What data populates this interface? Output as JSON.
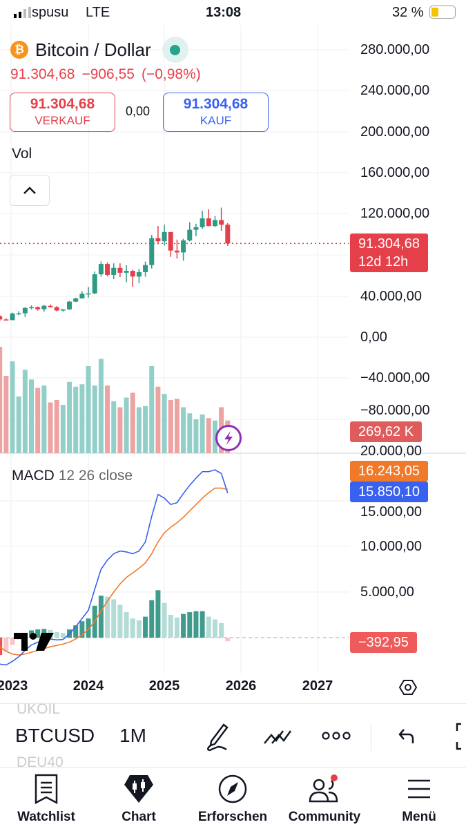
{
  "status": {
    "carrier": "spusu",
    "network": "LTE",
    "time": "13:08",
    "battery": "32 %",
    "battery_level": 0.32
  },
  "header": {
    "symbol_name": "Bitcoin / Dollar",
    "market_status": "open",
    "price": "91.304,68",
    "change": "−906,55",
    "change_pct": "(−0,98%)",
    "sell_price": "91.304,68",
    "sell_label": "VERKAUF",
    "spread": "0,00",
    "buy_price": "91.304,68",
    "buy_label": "KAUF"
  },
  "colors": {
    "up": "#26a69a",
    "down": "#e5404a",
    "macd": "#3861f0",
    "signal": "#f07a2a",
    "bitcoin": "#f7931a"
  },
  "vol_label": "Vol",
  "macd_label": {
    "name": "MACD",
    "params": "12 26 close"
  },
  "price_axis": [
    "280.000,00",
    "240.000,00",
    "200.000,00",
    "160.000,00",
    "120.000,00",
    "40.000,00",
    "0,00",
    "−40.000,00",
    "−80.000,00"
  ],
  "macd_axis": [
    "20.000,00",
    "15.000,00",
    "10.000,00",
    "5.000,00"
  ],
  "tags": {
    "price": "91.304,68",
    "countdown": "12d 12h",
    "volume": "269,62 K",
    "signal": "16.243,05",
    "macd": "15.850,10",
    "histogram": "−392,95"
  },
  "x_axis": [
    "2023",
    "2024",
    "2025",
    "2026",
    "2027"
  ],
  "toolbar": {
    "symbol": "BTCUSD",
    "interval": "1M",
    "prev_symbol": "UKOIL",
    "next_symbol": "DEU40"
  },
  "nav": [
    {
      "label": "Watchlist",
      "icon": "bookmark-list-icon"
    },
    {
      "label": "Chart",
      "icon": "candles-chart-icon"
    },
    {
      "label": "Erforschen",
      "icon": "compass-icon"
    },
    {
      "label": "Community",
      "icon": "people-icon"
    },
    {
      "label": "Menü",
      "icon": "hamburger-menu-icon"
    }
  ],
  "chart_data": {
    "type": "candlestick",
    "interval": "1M",
    "months": [
      "2022-11",
      "2022-12",
      "2023-01",
      "2023-02",
      "2023-03",
      "2023-04",
      "2023-05",
      "2023-06",
      "2023-07",
      "2023-08",
      "2023-09",
      "2023-10",
      "2023-11",
      "2023-12",
      "2024-01",
      "2024-02",
      "2024-03",
      "2024-04",
      "2024-05",
      "2024-06",
      "2024-07",
      "2024-08",
      "2024-09",
      "2024-10",
      "2024-11",
      "2024-12",
      "2025-01",
      "2025-02",
      "2025-03",
      "2025-04",
      "2025-05",
      "2025-06",
      "2025-07",
      "2025-08",
      "2025-09",
      "2025-10",
      "2025-11"
    ],
    "ohlc": [
      [
        20500,
        21500,
        15500,
        17200
      ],
      [
        17200,
        18400,
        16300,
        16500
      ],
      [
        16500,
        23900,
        16500,
        23100
      ],
      [
        23100,
        25200,
        21400,
        23200
      ],
      [
        23200,
        29200,
        19600,
        28500
      ],
      [
        28500,
        31000,
        27000,
        29200
      ],
      [
        29200,
        29800,
        25800,
        27200
      ],
      [
        27200,
        31400,
        24800,
        30500
      ],
      [
        30500,
        31800,
        28900,
        29200
      ],
      [
        29200,
        30200,
        25200,
        25900
      ],
      [
        25900,
        27500,
        24900,
        27000
      ],
      [
        27000,
        35200,
        26600,
        34600
      ],
      [
        34600,
        38400,
        34100,
        37700
      ],
      [
        37700,
        44700,
        37600,
        42300
      ],
      [
        42300,
        48900,
        38500,
        42600
      ],
      [
        42600,
        63900,
        41900,
        61200
      ],
      [
        61200,
        73800,
        59000,
        71300
      ],
      [
        71300,
        72800,
        59200,
        60600
      ],
      [
        60600,
        71900,
        56500,
        67500
      ],
      [
        67500,
        71900,
        58400,
        62700
      ],
      [
        62700,
        70000,
        53500,
        64600
      ],
      [
        64600,
        65600,
        49000,
        59000
      ],
      [
        59000,
        66500,
        52600,
        63300
      ],
      [
        63300,
        73600,
        58900,
        70200
      ],
      [
        70200,
        99600,
        66800,
        96400
      ],
      [
        96400,
        108300,
        90500,
        93400
      ],
      [
        93400,
        109600,
        89200,
        102400
      ],
      [
        102400,
        102500,
        78200,
        84300
      ],
      [
        84300,
        95000,
        76600,
        82500
      ],
      [
        82500,
        95800,
        74400,
        94200
      ],
      [
        94200,
        111900,
        93300,
        104600
      ],
      [
        104600,
        110500,
        98200,
        107100
      ],
      [
        107100,
        123200,
        105300,
        115700
      ],
      [
        115700,
        124500,
        108000,
        108200
      ],
      [
        108200,
        117900,
        107300,
        114000
      ],
      [
        114000,
        126200,
        103500,
        109500
      ],
      [
        109500,
        111000,
        89000,
        91305
      ]
    ],
    "volume_k": [
      880,
      640,
      760,
      470,
      690,
      610,
      540,
      560,
      420,
      440,
      400,
      590,
      550,
      570,
      720,
      560,
      780,
      560,
      430,
      380,
      460,
      500,
      380,
      390,
      720,
      550,
      490,
      440,
      450,
      380,
      330,
      280,
      320,
      290,
      270,
      380,
      270
    ],
    "macd": [
      -2900,
      -3000,
      -2600,
      -2100,
      -1400,
      -800,
      -500,
      -250,
      -150,
      -250,
      -200,
      400,
      1200,
      2100,
      3000,
      5300,
      7500,
      8500,
      9200,
      9500,
      9400,
      9200,
      9500,
      10500,
      13300,
      15700,
      15300,
      14600,
      14800,
      15800,
      16700,
      17500,
      18200,
      18200,
      18400,
      18000,
      15850.1
    ],
    "signal": [
      -1000,
      -1500,
      -1800,
      -1900,
      -1800,
      -1600,
      -1400,
      -1200,
      -1000,
      -850,
      -700,
      -500,
      -150,
      300,
      900,
      1800,
      2900,
      4000,
      5000,
      5900,
      6600,
      7100,
      7600,
      8200,
      9200,
      10500,
      11500,
      12100,
      12600,
      13200,
      13900,
      14600,
      15300,
      15900,
      16400,
      16400,
      16243.05
    ],
    "price_ylim": [
      -80000,
      280000
    ],
    "macd_ylim": [
      -3500,
      20000
    ],
    "last_price": 91304.68
  }
}
